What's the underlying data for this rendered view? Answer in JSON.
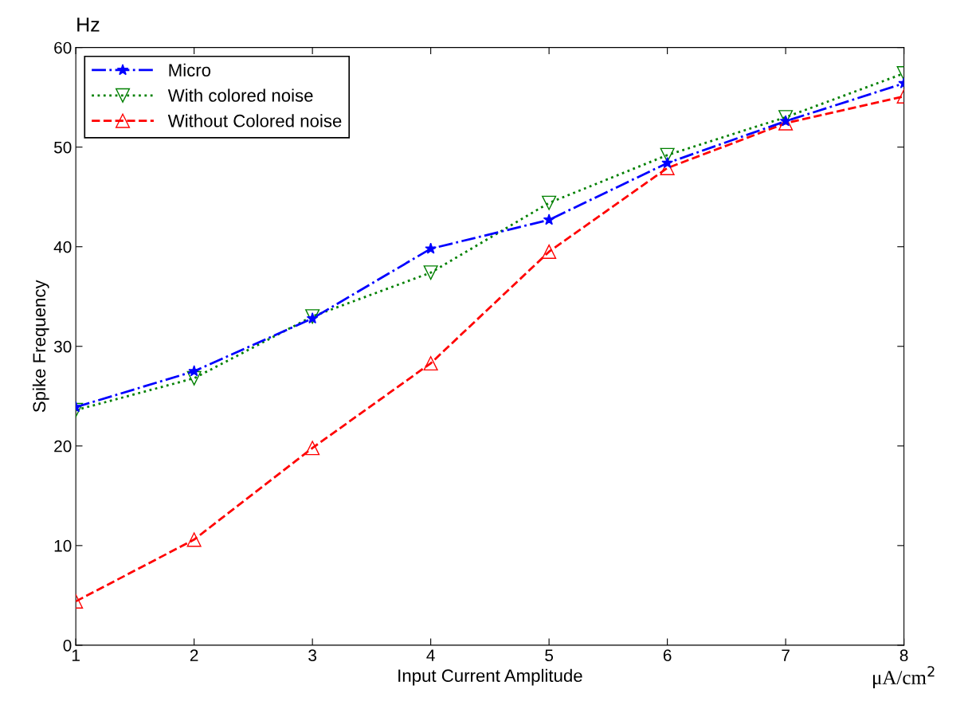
{
  "chart_data": {
    "type": "line",
    "xlabel": "Input Current Amplitude",
    "ylabel": "Spike Frequency",
    "annotations": [
      "Hz",
      "μA/cm$^{2}$"
    ],
    "x": [
      1,
      2,
      3,
      4,
      5,
      6,
      7,
      8
    ],
    "series": [
      {
        "name": "Micro",
        "color": "#0000ff",
        "marker": "star",
        "line_style": "dashdot",
        "values": [
          23.9,
          27.5,
          32.8,
          39.8,
          42.7,
          48.4,
          52.6,
          56.4
        ]
      },
      {
        "name": "With colored noise",
        "color": "#008000",
        "marker": "triangle_down",
        "line_style": "dotted",
        "values": [
          23.6,
          26.8,
          33.0,
          37.4,
          44.4,
          49.2,
          53.0,
          57.4
        ]
      },
      {
        "name": "Without Colored noise",
        "color": "#ff0000",
        "marker": "triangle",
        "line_style": "dashed",
        "values": [
          4.4,
          10.6,
          19.8,
          28.3,
          39.5,
          47.9,
          52.4,
          55.1
        ]
      }
    ],
    "xlim": [
      1,
      8
    ],
    "xticks": [
      1,
      2,
      3,
      4,
      5,
      6,
      7,
      8
    ],
    "ylim": [
      0,
      60
    ],
    "yticks": [
      0,
      10,
      20,
      30,
      40,
      50,
      60
    ],
    "grid": false,
    "legend": "top left"
  }
}
